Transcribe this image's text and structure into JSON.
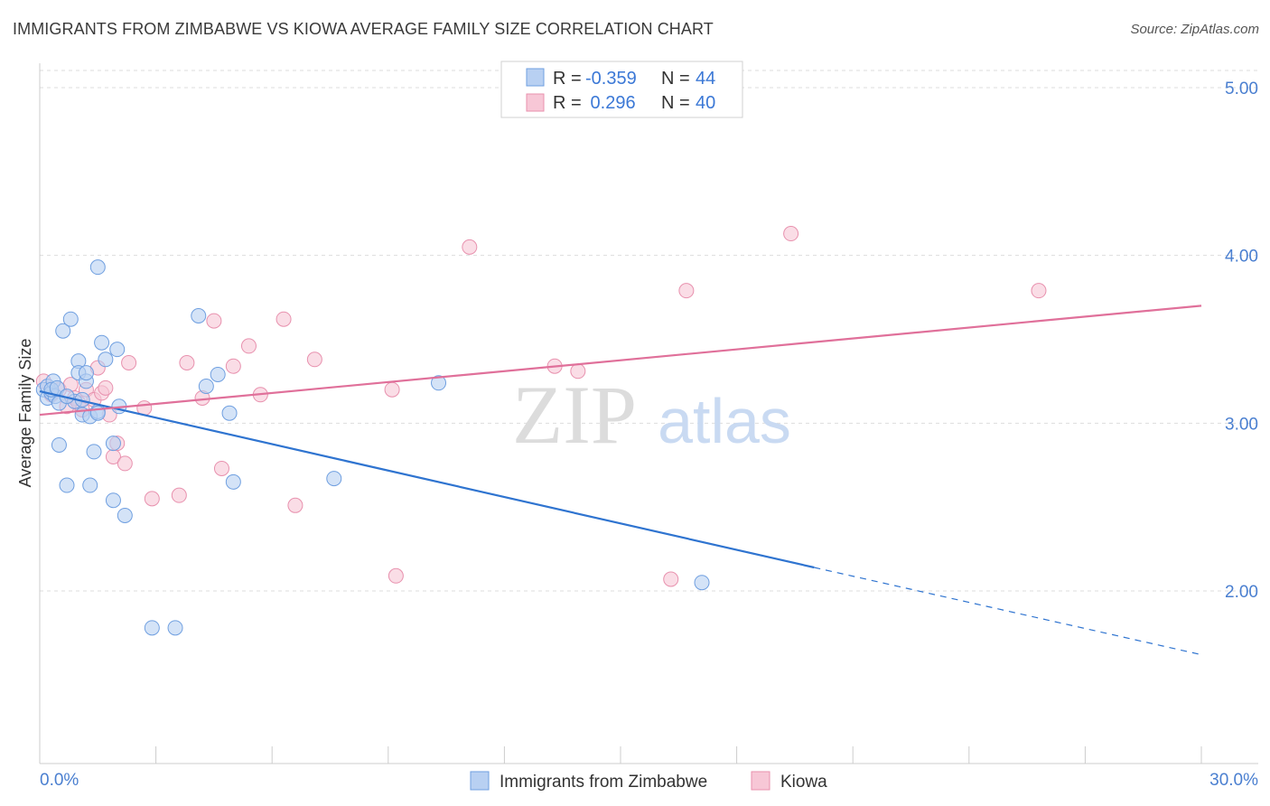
{
  "title": "IMMIGRANTS FROM ZIMBABWE VS KIOWA AVERAGE FAMILY SIZE CORRELATION CHART",
  "source": "Source: ZipAtlas.com",
  "watermark": {
    "zip": "ZIP",
    "atlas": "atlas"
  },
  "colors": {
    "blue_fill": "#b8d0f2",
    "blue_stroke": "#6f9fe0",
    "blue_line": "#2f74d0",
    "pink_fill": "#f7c7d6",
    "pink_stroke": "#e891ae",
    "pink_line": "#e0709a",
    "axis_label": "#4a7fd0",
    "grid": "#dddddd"
  },
  "legend": {
    "rows": [
      {
        "r_label": "R = ",
        "r_value": "-0.359",
        "n_label": "N = ",
        "n_value": "44"
      },
      {
        "r_label": "R = ",
        "r_value": " 0.296",
        "n_label": "N = ",
        "n_value": "40"
      }
    ]
  },
  "chart_data": {
    "type": "scatter",
    "xlabel": "",
    "ylabel": "Average Family Size",
    "xlim": [
      0,
      30
    ],
    "ylim": [
      1.0,
      5.15
    ],
    "x_tick_labels": [
      "0.0%",
      "30.0%"
    ],
    "y_ticks": [
      2.0,
      3.0,
      4.0,
      5.0
    ],
    "y_tick_labels": [
      "2.00",
      "3.00",
      "4.00",
      "5.00"
    ],
    "grid": true,
    "legend_position": "bottom",
    "series": [
      {
        "name": "Immigrants from Zimbabwe",
        "color": "blue",
        "trend": {
          "x0": 0,
          "y0": 3.19,
          "x1": 20.0,
          "y1": 2.14,
          "dash_to_x": 30,
          "dash_to_y": 1.62
        },
        "points": [
          [
            0.1,
            3.2
          ],
          [
            0.2,
            3.15
          ],
          [
            0.2,
            3.22
          ],
          [
            0.3,
            3.18
          ],
          [
            0.35,
            3.25
          ],
          [
            0.4,
            3.16
          ],
          [
            0.5,
            3.12
          ],
          [
            0.5,
            2.87
          ],
          [
            0.6,
            3.55
          ],
          [
            0.7,
            2.63
          ],
          [
            0.8,
            3.62
          ],
          [
            0.9,
            3.13
          ],
          [
            1.0,
            3.37
          ],
          [
            1.0,
            3.3
          ],
          [
            1.1,
            3.05
          ],
          [
            1.1,
            3.14
          ],
          [
            1.2,
            3.25
          ],
          [
            1.2,
            3.3
          ],
          [
            1.3,
            3.04
          ],
          [
            1.3,
            2.63
          ],
          [
            1.4,
            2.83
          ],
          [
            1.5,
            3.07
          ],
          [
            1.5,
            3.06
          ],
          [
            1.5,
            3.93
          ],
          [
            1.6,
            3.48
          ],
          [
            1.7,
            3.38
          ],
          [
            1.9,
            2.54
          ],
          [
            2.0,
            3.44
          ],
          [
            2.05,
            3.1
          ],
          [
            2.2,
            2.45
          ],
          [
            2.9,
            1.78
          ],
          [
            3.5,
            1.78
          ],
          [
            4.1,
            3.64
          ],
          [
            4.3,
            3.22
          ],
          [
            4.6,
            3.29
          ],
          [
            4.9,
            3.06
          ],
          [
            5.0,
            2.65
          ],
          [
            7.6,
            2.67
          ],
          [
            10.3,
            3.24
          ],
          [
            17.1,
            2.05
          ],
          [
            0.3,
            3.2
          ],
          [
            0.45,
            3.21
          ],
          [
            0.7,
            3.16
          ],
          [
            1.9,
            2.88
          ]
        ]
      },
      {
        "name": "Kiowa",
        "color": "pink",
        "trend": {
          "x0": 0,
          "y0": 3.05,
          "x1": 30,
          "y1": 3.7
        },
        "points": [
          [
            0.1,
            3.25
          ],
          [
            0.3,
            3.17
          ],
          [
            0.5,
            3.2
          ],
          [
            0.7,
            3.1
          ],
          [
            0.8,
            3.23
          ],
          [
            0.9,
            3.15
          ],
          [
            1.0,
            3.12
          ],
          [
            1.1,
            3.08
          ],
          [
            1.2,
            3.2
          ],
          [
            1.4,
            3.14
          ],
          [
            1.5,
            3.33
          ],
          [
            1.6,
            3.18
          ],
          [
            1.7,
            3.21
          ],
          [
            1.8,
            3.05
          ],
          [
            1.9,
            2.8
          ],
          [
            2.0,
            2.88
          ],
          [
            2.2,
            2.76
          ],
          [
            2.3,
            3.36
          ],
          [
            2.7,
            3.09
          ],
          [
            2.9,
            2.55
          ],
          [
            3.6,
            2.57
          ],
          [
            3.8,
            3.36
          ],
          [
            4.2,
            3.15
          ],
          [
            4.5,
            3.61
          ],
          [
            4.7,
            2.73
          ],
          [
            5.0,
            3.34
          ],
          [
            5.4,
            3.46
          ],
          [
            5.7,
            3.17
          ],
          [
            6.3,
            3.62
          ],
          [
            6.6,
            2.51
          ],
          [
            7.1,
            3.38
          ],
          [
            9.1,
            3.2
          ],
          [
            9.2,
            2.09
          ],
          [
            11.1,
            4.05
          ],
          [
            13.3,
            3.34
          ],
          [
            13.9,
            3.31
          ],
          [
            16.3,
            2.07
          ],
          [
            16.7,
            3.79
          ],
          [
            19.4,
            4.13
          ],
          [
            25.8,
            3.79
          ]
        ]
      }
    ]
  }
}
